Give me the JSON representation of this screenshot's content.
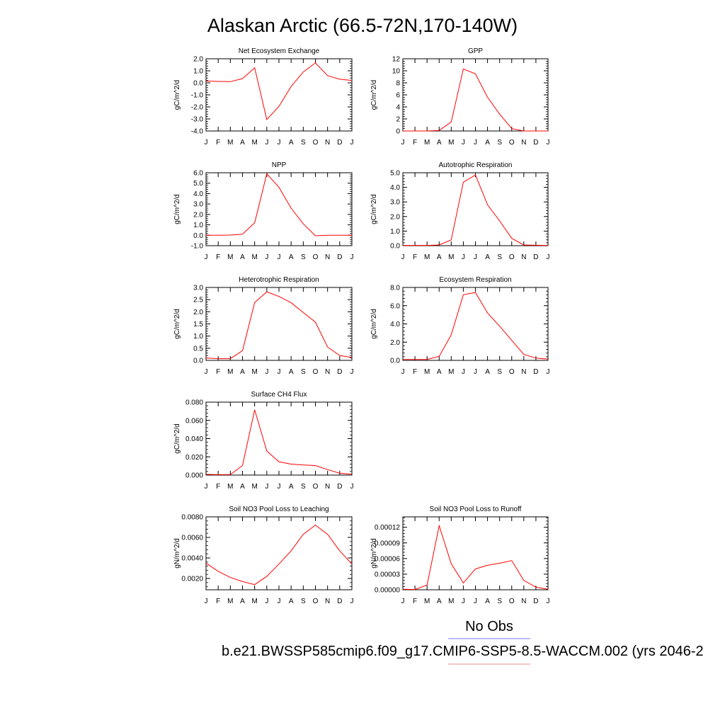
{
  "page": {
    "title": "Alaskan Arctic (66.5-72N,170-140W)",
    "legend_label": "No Obs",
    "caption": "b.e21.BWSSP585cmip6.f09_g17.CMIP6-SSP5-8.5-WACCM.002 (yrs 2046-2",
    "legend_colors": {
      "obs": "#7777ee",
      "model": "#ee8888"
    }
  },
  "chart_data": [
    {
      "type": "line",
      "title": "Net Ecosystem Exchange",
      "ylabel": "gC/m^2/d",
      "x": [
        "J",
        "F",
        "M",
        "A",
        "M",
        "J",
        "J",
        "A",
        "S",
        "O",
        "N",
        "D",
        "J"
      ],
      "ylim": [
        -4.0,
        2.0
      ],
      "yticks": [
        "2.0",
        "1.0",
        "0.0",
        "-1.0",
        "-2.0",
        "-3.0",
        "-4.0"
      ],
      "series": [
        {
          "values": [
            0.15,
            0.12,
            0.1,
            0.35,
            1.25,
            -3.05,
            -1.95,
            -0.3,
            0.9,
            1.65,
            0.6,
            0.3,
            0.2
          ],
          "color": "#ff0000"
        }
      ]
    },
    {
      "type": "line",
      "title": "GPP",
      "ylabel": "gC/m^2/d",
      "x": [
        "J",
        "F",
        "M",
        "A",
        "M",
        "J",
        "J",
        "A",
        "S",
        "O",
        "N",
        "D",
        "J"
      ],
      "ylim": [
        0,
        12
      ],
      "yticks": [
        "12",
        "10",
        "8",
        "6",
        "4",
        "2",
        "0"
      ],
      "series": [
        {
          "values": [
            0,
            0,
            0,
            0.1,
            1.5,
            10.3,
            9.5,
            5.6,
            2.8,
            0.4,
            0,
            0,
            0
          ],
          "color": "#ff0000"
        }
      ]
    },
    {
      "type": "line",
      "title": "NPP",
      "ylabel": "gC/m^2/d",
      "x": [
        "J",
        "F",
        "M",
        "A",
        "M",
        "J",
        "J",
        "A",
        "S",
        "O",
        "N",
        "D",
        "J"
      ],
      "ylim": [
        -1.0,
        6.0
      ],
      "yticks": [
        "6.0",
        "5.0",
        "4.0",
        "3.0",
        "2.0",
        "1.0",
        "0.0",
        "-1.0"
      ],
      "series": [
        {
          "values": [
            0,
            0,
            0.02,
            0.1,
            1.2,
            5.9,
            4.6,
            2.6,
            1.1,
            -0.05,
            0,
            0,
            0
          ],
          "color": "#ff0000"
        }
      ]
    },
    {
      "type": "line",
      "title": "Autotrophic Respiration",
      "ylabel": "gC/m^2/d",
      "x": [
        "J",
        "F",
        "M",
        "A",
        "M",
        "J",
        "J",
        "A",
        "S",
        "O",
        "N",
        "D",
        "J"
      ],
      "ylim": [
        0,
        5.0
      ],
      "yticks": [
        "5.0",
        "4.0",
        "3.0",
        "2.0",
        "1.0",
        "0.0"
      ],
      "series": [
        {
          "values": [
            0.02,
            0.02,
            0.02,
            0.05,
            0.4,
            4.35,
            4.85,
            2.8,
            1.7,
            0.5,
            0.05,
            0.03,
            0.02
          ],
          "color": "#ff0000"
        }
      ]
    },
    {
      "type": "line",
      "title": "Heterotrophic Respiration",
      "ylabel": "gC/m^2/d",
      "x": [
        "J",
        "F",
        "M",
        "A",
        "M",
        "J",
        "J",
        "A",
        "S",
        "O",
        "N",
        "D",
        "J"
      ],
      "ylim": [
        0,
        3.0
      ],
      "yticks": [
        "3.0",
        "2.5",
        "2.0",
        "1.5",
        "1.0",
        "0.5",
        "0.0"
      ],
      "series": [
        {
          "values": [
            0.1,
            0.07,
            0.07,
            0.4,
            2.38,
            2.82,
            2.63,
            2.37,
            1.97,
            1.57,
            0.55,
            0.2,
            0.12
          ],
          "color": "#ff0000"
        }
      ]
    },
    {
      "type": "line",
      "title": "Ecosystem Respiration",
      "ylabel": "gC/m^2/d",
      "x": [
        "J",
        "F",
        "M",
        "A",
        "M",
        "J",
        "J",
        "A",
        "S",
        "O",
        "N",
        "D",
        "J"
      ],
      "ylim": [
        0,
        8.0
      ],
      "yticks": [
        "8.0",
        "6.0",
        "4.0",
        "2.0",
        "0.0"
      ],
      "series": [
        {
          "values": [
            0.1,
            0.1,
            0.1,
            0.45,
            2.8,
            7.2,
            7.45,
            5.2,
            3.75,
            2.2,
            0.65,
            0.25,
            0.15
          ],
          "color": "#ff0000"
        }
      ]
    },
    {
      "type": "line",
      "title": "Surface CH4 Flux",
      "ylabel": "gC/m^2/d",
      "x": [
        "J",
        "F",
        "M",
        "A",
        "M",
        "J",
        "J",
        "A",
        "S",
        "O",
        "N",
        "D",
        "J"
      ],
      "ylim": [
        0,
        0.08
      ],
      "yticks": [
        "0.080",
        "0.060",
        "0.040",
        "0.020",
        "0.000"
      ],
      "series": [
        {
          "values": [
            0.0008,
            0.0005,
            0.0005,
            0.0105,
            0.0715,
            0.0265,
            0.0145,
            0.012,
            0.011,
            0.0105,
            0.006,
            0.002,
            0.001
          ],
          "color": "#ff0000"
        }
      ]
    },
    {
      "type": "line",
      "title": "Soil NO3 Pool Loss to Leaching",
      "ylabel": "gN/m^2/d",
      "x": [
        "J",
        "F",
        "M",
        "A",
        "M",
        "J",
        "J",
        "A",
        "S",
        "O",
        "N",
        "D",
        "J"
      ],
      "ylim": [
        0.0009,
        0.008
      ],
      "yticks": [
        "0.0080",
        "0.0060",
        "0.0040",
        "0.0020"
      ],
      "series": [
        {
          "values": [
            0.0035,
            0.0027,
            0.0021,
            0.0017,
            0.0014,
            0.0022,
            0.0034,
            0.0047,
            0.0063,
            0.0072,
            0.0063,
            0.0047,
            0.0034
          ],
          "color": "#ff0000"
        }
      ]
    },
    {
      "type": "line",
      "title": "Soil NO3 Pool Loss to Runoff",
      "ylabel": "gN/m^2/d",
      "x": [
        "J",
        "F",
        "M",
        "A",
        "M",
        "J",
        "J",
        "A",
        "S",
        "O",
        "N",
        "D",
        "J"
      ],
      "ylim": [
        0,
        0.00014
      ],
      "yticks": [
        "0.00012",
        "0.00009",
        "0.00006",
        "0.00003",
        "0.00000"
      ],
      "series": [
        {
          "values": [
            1e-06,
            5e-07,
            9e-06,
            0.000123,
            5e-05,
            1.3e-05,
            4e-05,
            4.7e-05,
            5.1e-05,
            5.6e-05,
            1.8e-05,
            5e-06,
            1e-06
          ],
          "color": "#ff0000"
        }
      ]
    }
  ]
}
